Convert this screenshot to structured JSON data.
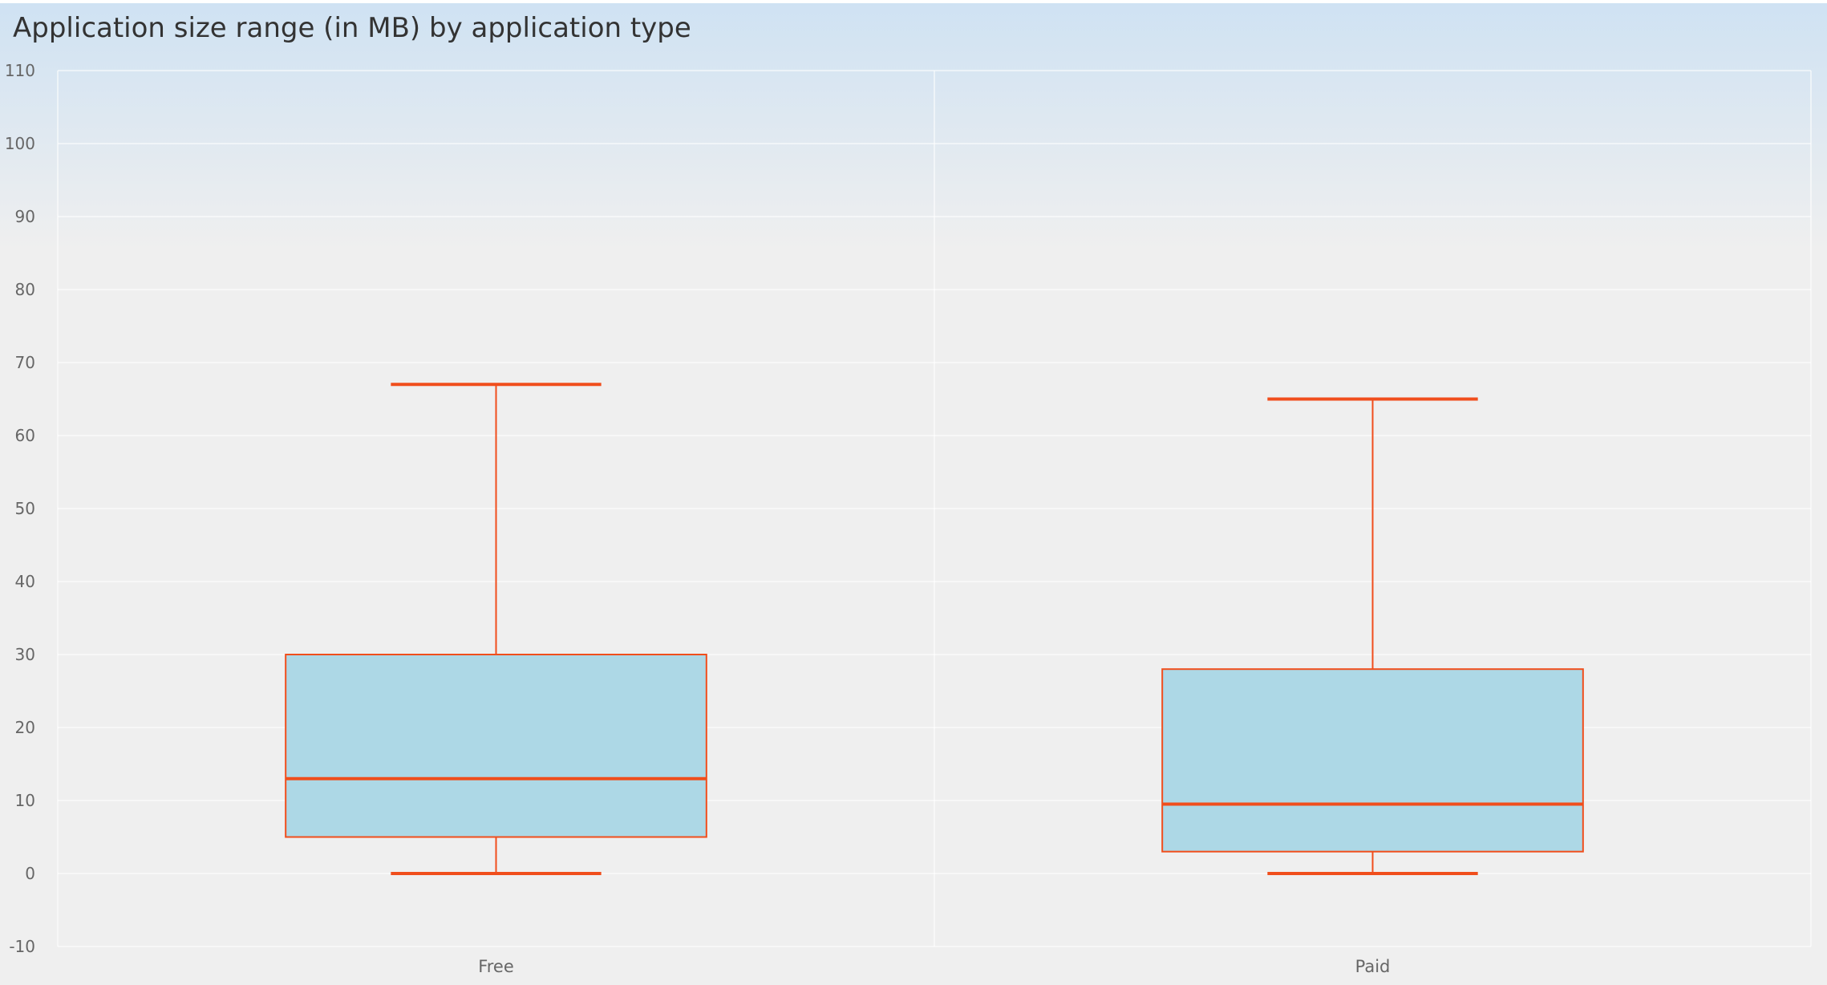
{
  "chart_data": {
    "type": "boxplot",
    "title": "Application size range (in MB) by application type",
    "xlabel": "",
    "ylabel": "",
    "ylim": [
      -10,
      110
    ],
    "yticks": [
      -10,
      0,
      10,
      20,
      30,
      40,
      50,
      60,
      70,
      80,
      90,
      100,
      110
    ],
    "categories": [
      "Free",
      "Paid"
    ],
    "boxes": [
      {
        "category": "Free",
        "min": 0,
        "q1": 5,
        "median": 13,
        "q3": 30,
        "max": 67
      },
      {
        "category": "Paid",
        "min": 0,
        "q1": 3,
        "median": 9.5,
        "q3": 28,
        "max": 65
      }
    ],
    "grid": true,
    "colors": {
      "box_fill": "#add8e6",
      "box_stroke": "#f04e1c",
      "background": "#efefef",
      "header_gradient_top": "#cfe2f3",
      "grid": "#ffffff",
      "text": "#333333",
      "tick_text": "#666666"
    }
  }
}
